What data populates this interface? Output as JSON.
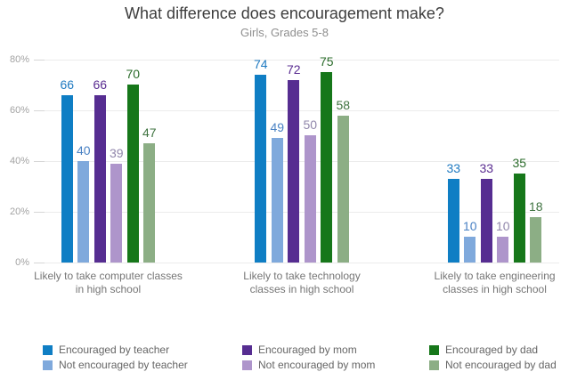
{
  "header": {
    "title": "What difference does encouragement make?",
    "subtitle": "Girls, Grades 5-8"
  },
  "chart_data": {
    "type": "bar",
    "title": "What difference does encouragement make?",
    "subtitle": "Girls, Grades 5-8",
    "categories": [
      [
        "Likely to take computer classes",
        "in high school"
      ],
      [
        "Likely to take technology",
        "classes in high school"
      ],
      [
        "Likely to take engineering",
        "classes in high school"
      ]
    ],
    "series": [
      {
        "name": "Encouraged by teacher",
        "color": "#0f7ec4",
        "label_color": "#1f7ac1",
        "values": [
          66,
          74,
          33
        ]
      },
      {
        "name": "Not encouraged by teacher",
        "color": "#7fa9dc",
        "label_color": "#4a82c4",
        "values": [
          40,
          49,
          10
        ]
      },
      {
        "name": "Encouraged by mom",
        "color": "#562d91",
        "label_color": "#5a2d91",
        "values": [
          66,
          72,
          33
        ]
      },
      {
        "name": "Not encouraged by mom",
        "color": "#ae95cb",
        "label_color": "#9187ab",
        "values": [
          39,
          50,
          10
        ]
      },
      {
        "name": "Encouraged by dad",
        "color": "#16771a",
        "label_color": "#2b6c2b",
        "values": [
          70,
          75,
          35
        ]
      },
      {
        "name": "Not encouraged by dad",
        "color": "#8cae85",
        "label_color": "#3f7340",
        "values": [
          47,
          58,
          18
        ]
      }
    ],
    "y_tick_values": [
      0,
      20,
      40,
      60,
      80
    ],
    "y_tick_labels": [
      "0%",
      "20%",
      "40%",
      "60%",
      "80%"
    ],
    "ylim": [
      0,
      80
    ],
    "grid": true,
    "legend_position": "bottom",
    "legend_rows": 2,
    "legend_columns": 3
  }
}
